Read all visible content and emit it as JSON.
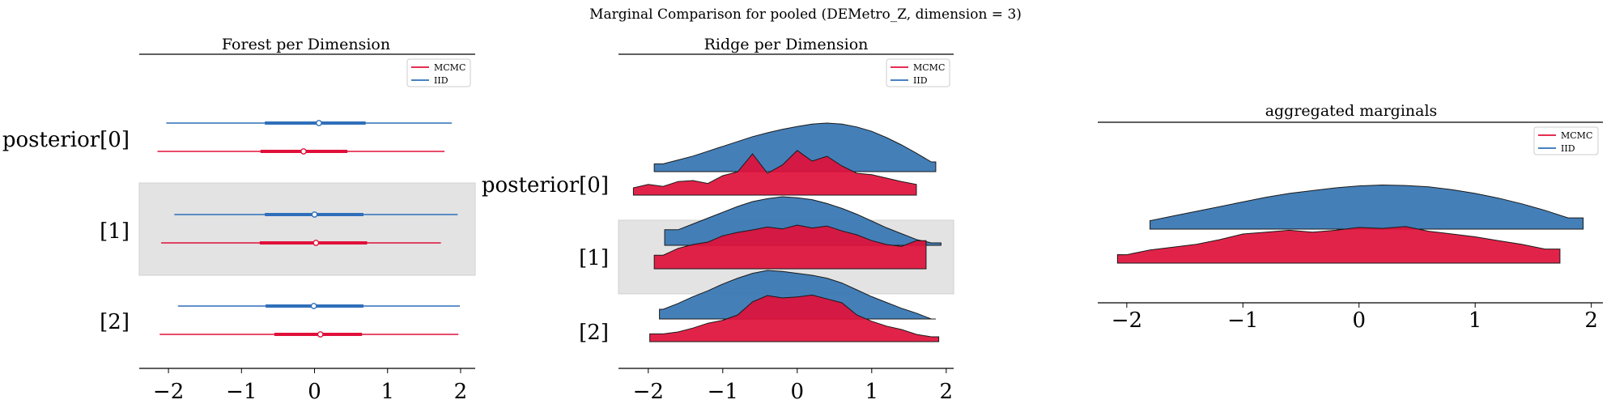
{
  "figure": {
    "suptitle": "Marginal Comparison for pooled (DEMetro_Z, dimension = 3)"
  },
  "colors": {
    "mcmc": "#e0103a",
    "iid": "#2f6fba",
    "highlight": "#e3e3e3",
    "density_iid": "#3a78b4"
  },
  "chart_data": [
    {
      "type": "forest",
      "title": "Forest per Dimension",
      "xlim": [
        -2.4,
        2.2
      ],
      "xticks": [
        -2,
        -1,
        0,
        1,
        2
      ],
      "tick_labels": [
        "−2",
        "−1",
        "0",
        "1",
        "2"
      ],
      "row_labels": [
        "posterior[0]",
        "[1]",
        "[2]"
      ],
      "highlight_row": 1,
      "legend": {
        "entries": [
          "MCMC",
          "IID"
        ],
        "placement": "upper-right"
      },
      "series": [
        {
          "name": "IID",
          "color": "#2f6fba",
          "rows": [
            {
              "lo": -2.03,
              "q25": -0.68,
              "mid": 0.06,
              "q75": 0.7,
              "hi": 1.88
            },
            {
              "lo": -1.92,
              "q25": -0.68,
              "mid": 0.0,
              "q75": 0.67,
              "hi": 1.96
            },
            {
              "lo": -1.87,
              "q25": -0.67,
              "mid": -0.01,
              "q75": 0.67,
              "hi": 1.99
            }
          ]
        },
        {
          "name": "MCMC",
          "color": "#e0103a",
          "rows": [
            {
              "lo": -2.15,
              "q25": -0.74,
              "mid": -0.15,
              "q75": 0.45,
              "hi": 1.78
            },
            {
              "lo": -2.1,
              "q25": -0.75,
              "mid": 0.02,
              "q75": 0.72,
              "hi": 1.73
            },
            {
              "lo": -2.12,
              "q25": -0.55,
              "mid": 0.08,
              "q75": 0.65,
              "hi": 1.97
            }
          ]
        }
      ]
    },
    {
      "type": "ridge",
      "title": "Ridge per Dimension",
      "xlim": [
        -2.4,
        2.1
      ],
      "xticks": [
        -2,
        -1,
        0,
        1,
        2
      ],
      "tick_labels": [
        "−2",
        "−1",
        "0",
        "1",
        "2"
      ],
      "row_labels": [
        "posterior[0]",
        "[1]",
        "[2]"
      ],
      "highlight_row": 1,
      "legend": {
        "entries": [
          "MCMC",
          "IID"
        ],
        "placement": "upper-right"
      },
      "x_grid": [
        -2.2,
        -2.0,
        -1.8,
        -1.6,
        -1.4,
        -1.2,
        -1.0,
        -0.8,
        -0.6,
        -0.4,
        -0.2,
        0.0,
        0.2,
        0.4,
        0.6,
        0.8,
        1.0,
        1.2,
        1.4,
        1.6,
        1.8,
        2.0
      ],
      "rows": [
        {
          "iid": {
            "range": [
              -1.92,
              1.86
            ],
            "density": [
              0.0,
              0.08,
              0.16,
              0.24,
              0.32,
              0.42,
              0.52,
              0.62,
              0.72,
              0.8,
              0.87,
              0.93,
              0.98,
              1.0,
              0.98,
              0.92,
              0.83,
              0.7,
              0.55,
              0.38,
              0.2,
              0.0
            ]
          },
          "mcmc": {
            "range": [
              -2.2,
              1.6
            ],
            "density": [
              0.15,
              0.22,
              0.18,
              0.28,
              0.3,
              0.24,
              0.4,
              0.48,
              0.85,
              0.45,
              0.62,
              0.92,
              0.7,
              0.8,
              0.6,
              0.45,
              0.42,
              0.35,
              0.28,
              0.22,
              0.0,
              0.0
            ]
          }
        },
        {
          "iid": {
            "range": [
              -1.78,
              1.93
            ],
            "density": [
              0.0,
              0.1,
              0.2,
              0.32,
              0.44,
              0.56,
              0.68,
              0.8,
              0.9,
              0.96,
              1.0,
              0.98,
              0.94,
              0.86,
              0.76,
              0.64,
              0.5,
              0.36,
              0.24,
              0.12,
              0.05,
              0.0
            ]
          },
          "mcmc": {
            "range": [
              -1.92,
              1.73
            ],
            "density": [
              0.0,
              0.2,
              0.28,
              0.42,
              0.5,
              0.55,
              0.68,
              0.75,
              0.8,
              0.86,
              0.82,
              0.9,
              0.84,
              0.88,
              0.78,
              0.7,
              0.58,
              0.5,
              0.46,
              0.58,
              0.3,
              0.0
            ]
          }
        },
        {
          "iid": {
            "range": [
              -1.85,
              1.86
            ],
            "density": [
              0.0,
              0.1,
              0.2,
              0.32,
              0.46,
              0.58,
              0.72,
              0.84,
              0.94,
              1.0,
              0.98,
              0.94,
              0.9,
              0.84,
              0.74,
              0.6,
              0.46,
              0.34,
              0.22,
              0.12,
              0.0,
              0.0
            ]
          },
          "mcmc": {
            "range": [
              -1.98,
              1.9
            ],
            "density": [
              0.12,
              0.1,
              0.16,
              0.2,
              0.28,
              0.38,
              0.44,
              0.55,
              0.82,
              0.95,
              0.9,
              0.92,
              0.96,
              0.88,
              0.8,
              0.55,
              0.42,
              0.32,
              0.25,
              0.15,
              0.1,
              0.0
            ]
          }
        }
      ]
    },
    {
      "type": "ridge",
      "title": "aggregated marginals",
      "xlim": [
        -2.25,
        2.1
      ],
      "xticks": [
        -2,
        -1,
        0,
        1,
        2
      ],
      "tick_labels": [
        "−2",
        "−1",
        "0",
        "1",
        "2"
      ],
      "legend": {
        "entries": [
          "MCMC",
          "IID"
        ],
        "placement": "upper-right"
      },
      "x_grid": [
        -2.2,
        -2.0,
        -1.8,
        -1.6,
        -1.4,
        -1.2,
        -1.0,
        -0.8,
        -0.6,
        -0.4,
        -0.2,
        0.0,
        0.2,
        0.4,
        0.6,
        0.8,
        1.0,
        1.2,
        1.4,
        1.6,
        1.8,
        2.0
      ],
      "rows": [
        {
          "iid": {
            "range": [
              -1.8,
              1.93
            ],
            "density": [
              0.0,
              0.1,
              0.18,
              0.28,
              0.38,
              0.48,
              0.58,
              0.68,
              0.76,
              0.82,
              0.88,
              0.92,
              0.94,
              0.93,
              0.9,
              0.84,
              0.76,
              0.66,
              0.54,
              0.4,
              0.24,
              0.08
            ]
          },
          "mcmc": {
            "range": [
              -2.08,
              1.73
            ],
            "density": [
              0.12,
              0.18,
              0.28,
              0.34,
              0.4,
              0.5,
              0.62,
              0.66,
              0.7,
              0.66,
              0.7,
              0.76,
              0.74,
              0.78,
              0.68,
              0.62,
              0.56,
              0.48,
              0.4,
              0.3,
              0.18,
              0.0
            ]
          }
        }
      ]
    }
  ]
}
